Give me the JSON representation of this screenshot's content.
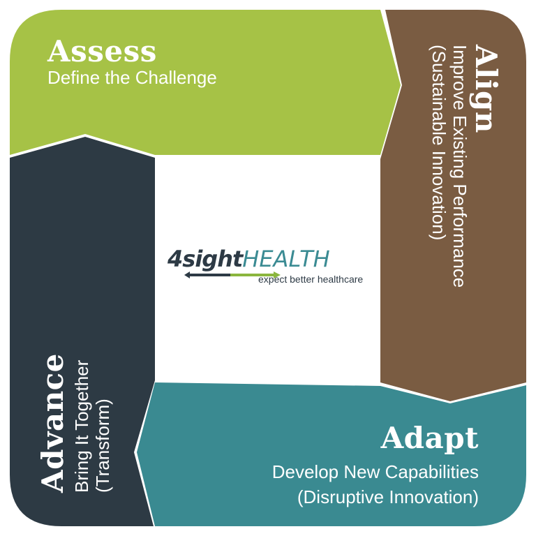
{
  "colors": {
    "assess": "#a6c246",
    "align": "#7a5c42",
    "adapt": "#3a8a91",
    "advance": "#2d3a44",
    "logo_dark": "#2d3a45",
    "logo_teal": "#3b8b93",
    "logo_green": "#8bb63e"
  },
  "quadrants": {
    "assess": {
      "title": "Assess",
      "subtitle": "Define the Challenge"
    },
    "align": {
      "title": "Align",
      "line1": "Improve Existing Performance",
      "line2": "(Sustainable Innovation)"
    },
    "adapt": {
      "title": "Adapt",
      "line1": "Develop New Capabilities",
      "line2": "(Disruptive Innovation)"
    },
    "advance": {
      "title": "Advance",
      "line1": "Bring It Together",
      "line2": "(Transform)"
    }
  },
  "logo": {
    "brand_part1": "4sight",
    "brand_part2": "HEALTH",
    "tagline": "expect better healthcare"
  }
}
